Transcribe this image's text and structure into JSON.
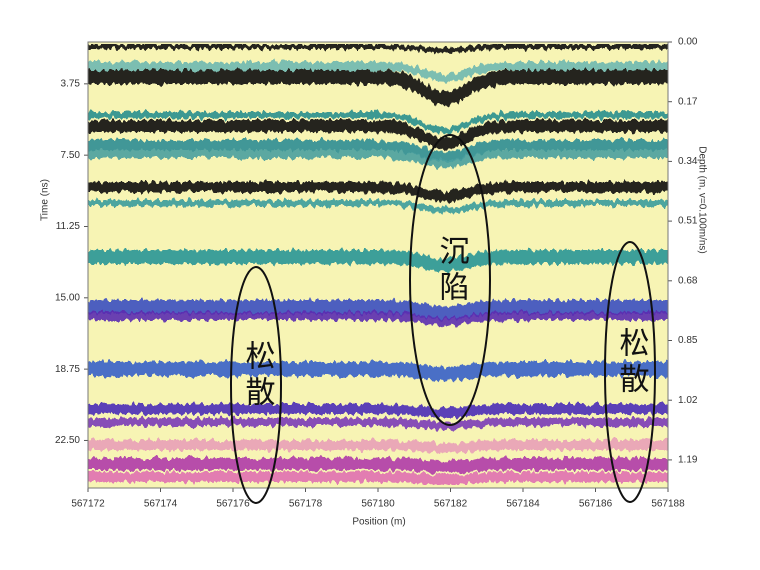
{
  "chart_data": {
    "type": "radargram",
    "x_label": "Position (m)",
    "y_label": "Time (ns)",
    "y2_label": "Depth (m, v=0.100m/ns)",
    "xlim": [
      567172,
      567188
    ],
    "xticks": [
      567172,
      567174,
      567176,
      567178,
      567180,
      567182,
      567184,
      567186,
      567188
    ],
    "ylim": [
      1.55,
      25
    ],
    "yticks": [
      3.75,
      {
        "value": 7.5,
        "label": "7.50"
      },
      11.25,
      {
        "value": 15,
        "label": "15.00"
      },
      18.75,
      {
        "value": 22.5,
        "label": "22.50"
      }
    ],
    "y2lim": [
      0,
      1.27
    ],
    "y2ticks": [
      {
        "value": 0,
        "label": "0.00"
      },
      0.17,
      0.34,
      0.51,
      0.68,
      0.85,
      1.02,
      1.19
    ],
    "annotations": [
      "松散",
      "沉陷",
      "松散"
    ]
  }
}
